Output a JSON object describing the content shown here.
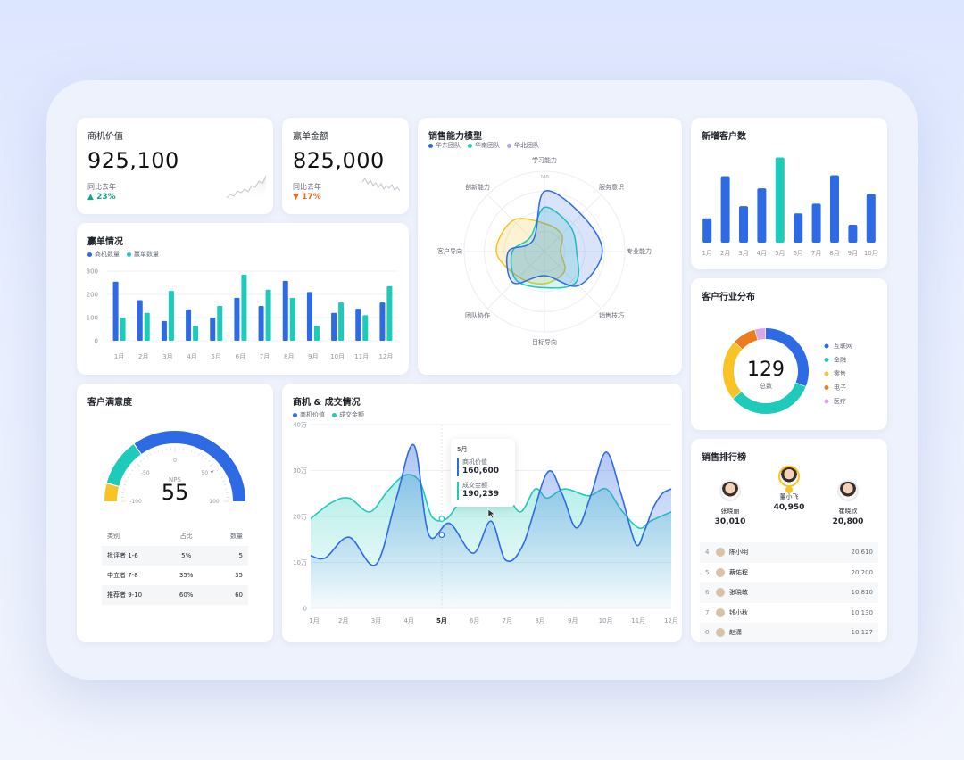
{
  "kpi1": {
    "title": "商机价值",
    "value": "925,100",
    "compare": "同比去年",
    "pct": "23%"
  },
  "kpi2": {
    "title": "赢单金额",
    "value": "825,000",
    "compare": "同比去年",
    "pct": "17%"
  },
  "colors": {
    "blue": "#2d6ae3",
    "teal": "#1ecbbb",
    "yellow": "#f7c325",
    "orange": "#ee7b1d",
    "pink": "#dca7e8",
    "up": "#14a38b",
    "down": "#ee6a1d"
  },
  "win": {
    "title": "赢单情况",
    "legend": [
      "商机数量",
      "赢单数量"
    ],
    "chart_data": {
      "type": "bar",
      "categories": [
        "1月",
        "2月",
        "3月",
        "4月",
        "5月",
        "6月",
        "7月",
        "8月",
        "9月",
        "10月",
        "11月",
        "12月"
      ],
      "series": [
        {
          "name": "商机数量",
          "values": [
            255,
            175,
            85,
            135,
            100,
            185,
            150,
            258,
            210,
            120,
            138,
            165
          ]
        },
        {
          "name": "赢单数量",
          "values": [
            100,
            120,
            215,
            65,
            150,
            285,
            220,
            185,
            65,
            165,
            110,
            235
          ]
        }
      ],
      "yticks": [
        "0",
        "100",
        "200",
        "300"
      ],
      "ylim": [
        0,
        300
      ]
    }
  },
  "radar": {
    "title": "销售能力模型",
    "legend": [
      "华东团队",
      "华南团队",
      "华北团队"
    ],
    "chart_data": {
      "type": "radar",
      "axes": [
        "学习能力",
        "服务意识",
        "专业能力",
        "销售技巧",
        "目标导向",
        "团队协作",
        "客户导向",
        "创新能力"
      ],
      "scale_label": "100",
      "series": [
        {
          "name": "华东团队",
          "values": [
            75,
            65,
            72,
            60,
            30,
            55,
            45,
            20
          ]
        },
        {
          "name": "华南团队",
          "values": [
            55,
            45,
            40,
            55,
            45,
            50,
            40,
            25
          ]
        },
        {
          "name": "华北团队",
          "values": [
            35,
            30,
            20,
            35,
            40,
            45,
            60,
            55
          ]
        }
      ]
    }
  },
  "newcust": {
    "title": "新增客户数",
    "chart_data": {
      "type": "bar",
      "categories": [
        "1月",
        "2月",
        "3月",
        "4月",
        "5月",
        "6月",
        "7月",
        "8月",
        "9月",
        "10月"
      ],
      "values": [
        30,
        82,
        45,
        67,
        105,
        36,
        48,
        83,
        22,
        60
      ],
      "highlight_index": 4
    }
  },
  "industry": {
    "title": "客户行业分布",
    "center_value": "129",
    "center_label": "总数",
    "chart_data": {
      "type": "pie",
      "labels": [
        "互联网",
        "金融",
        "零售",
        "电子",
        "医疗"
      ],
      "values": [
        31,
        33,
        23,
        9,
        4
      ]
    }
  },
  "satisfaction": {
    "title": "客户满意度",
    "gauge_label": "NPS",
    "gauge_value": "55",
    "ticks": [
      "-100",
      "-50",
      "0",
      "50",
      "100"
    ],
    "table": {
      "headers": [
        "类别",
        "占比",
        "数量"
      ],
      "rows": [
        [
          "批评者 1-6",
          "5%",
          "5"
        ],
        [
          "中立者 7-8",
          "35%",
          "35"
        ],
        [
          "推荐者 9-10",
          "60%",
          "60"
        ]
      ]
    }
  },
  "deals": {
    "title": "商机 & 成交情况",
    "legend": [
      "商机价值",
      "成交金额"
    ],
    "tooltip": {
      "month": "5月",
      "s1_label": "商机价值",
      "s1_value": "160,600",
      "s2_label": "成交金额",
      "s2_value": "190,239"
    },
    "chart_data": {
      "type": "area",
      "categories": [
        "1月",
        "2月",
        "3月",
        "4月",
        "5月",
        "6月",
        "7月",
        "8月",
        "9月",
        "10月",
        "11月",
        "12月"
      ],
      "yticks": [
        "0",
        "10万",
        "20万",
        "30万",
        "40万"
      ],
      "ylim": [
        0,
        40
      ],
      "series": [
        {
          "name": "商机价值",
          "x": [
            0,
            0.5,
            1.3,
            2.2,
            2.9,
            3.5,
            4.0,
            4.7,
            5.5,
            6.1,
            6.6,
            7.2,
            8.0,
            8.5,
            9.0,
            9.5,
            10.0,
            10.5,
            11.0,
            11.3,
            11.6,
            11.9,
            12.2
          ],
          "values": [
            11.5,
            11,
            15.5,
            9.5,
            24,
            35.5,
            16,
            18.5,
            12,
            19,
            10.5,
            14,
            29.5,
            25,
            17.5,
            25,
            34,
            25,
            14,
            17,
            22,
            25,
            26
          ]
        },
        {
          "name": "成交金额",
          "x": [
            0,
            0.7,
            1.3,
            2.0,
            2.6,
            3.2,
            3.7,
            4.1,
            4.6,
            5.1,
            5.6,
            6.1,
            6.6,
            7.1,
            7.6,
            8.0,
            8.6,
            9.4,
            10.0,
            10.5,
            11.1,
            11.5,
            12.2
          ],
          "values": [
            19.5,
            23,
            24,
            21,
            25.5,
            29,
            27.5,
            20,
            19.5,
            23.5,
            24,
            26.5,
            25,
            21,
            26,
            24,
            26,
            24.5,
            26,
            21.5,
            17.5,
            19,
            21
          ]
        }
      ]
    }
  },
  "ranking": {
    "title": "销售排行榜",
    "top": [
      {
        "name": "张晓丽",
        "score": "30,010"
      },
      {
        "name": "董小飞",
        "score": "40,950"
      },
      {
        "name": "崔晓欣",
        "score": "20,800"
      }
    ],
    "rows": [
      {
        "no": "4",
        "name": "陈小明",
        "val": "20,610"
      },
      {
        "no": "5",
        "name": "蔡佑程",
        "val": "20,200"
      },
      {
        "no": "6",
        "name": "张晓敏",
        "val": "10,810"
      },
      {
        "no": "7",
        "name": "钱小秋",
        "val": "10,130"
      },
      {
        "no": "8",
        "name": "赵潇",
        "val": "10,127"
      }
    ]
  }
}
